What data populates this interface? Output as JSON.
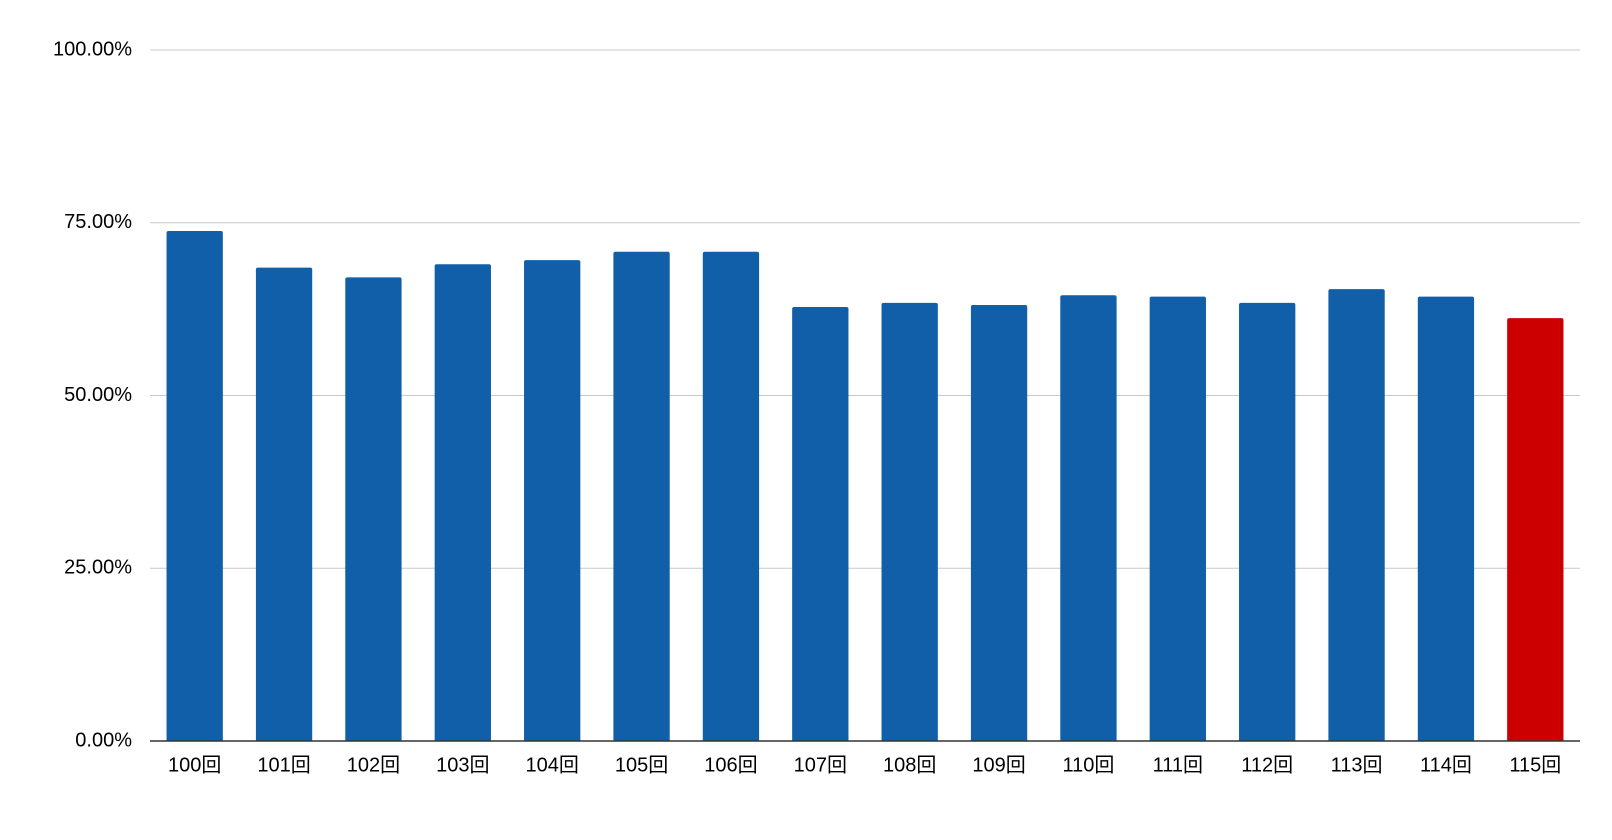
{
  "chart_data": {
    "type": "bar",
    "categories": [
      "100回",
      "101回",
      "102回",
      "103回",
      "104回",
      "105回",
      "106回",
      "107回",
      "108回",
      "109回",
      "110回",
      "111回",
      "112回",
      "113回",
      "114回",
      "115回"
    ],
    "values": [
      73.8,
      68.5,
      67.1,
      69.0,
      69.6,
      70.8,
      70.8,
      62.8,
      63.4,
      63.1,
      64.5,
      64.3,
      63.4,
      65.4,
      64.3,
      61.2
    ],
    "colors": [
      "#105fa8",
      "#105fa8",
      "#105fa8",
      "#105fa8",
      "#105fa8",
      "#105fa8",
      "#105fa8",
      "#105fa8",
      "#105fa8",
      "#105fa8",
      "#105fa8",
      "#105fa8",
      "#105fa8",
      "#105fa8",
      "#105fa8",
      "#cc0000"
    ],
    "ylim": [
      0,
      100
    ],
    "yticks": [
      {
        "value": 0,
        "label": "0.00%"
      },
      {
        "value": 25,
        "label": "25.00%"
      },
      {
        "value": 50,
        "label": "50.00%"
      },
      {
        "value": 75,
        "label": "75.00%"
      },
      {
        "value": 100,
        "label": "100.00%"
      }
    ],
    "grid": true
  }
}
